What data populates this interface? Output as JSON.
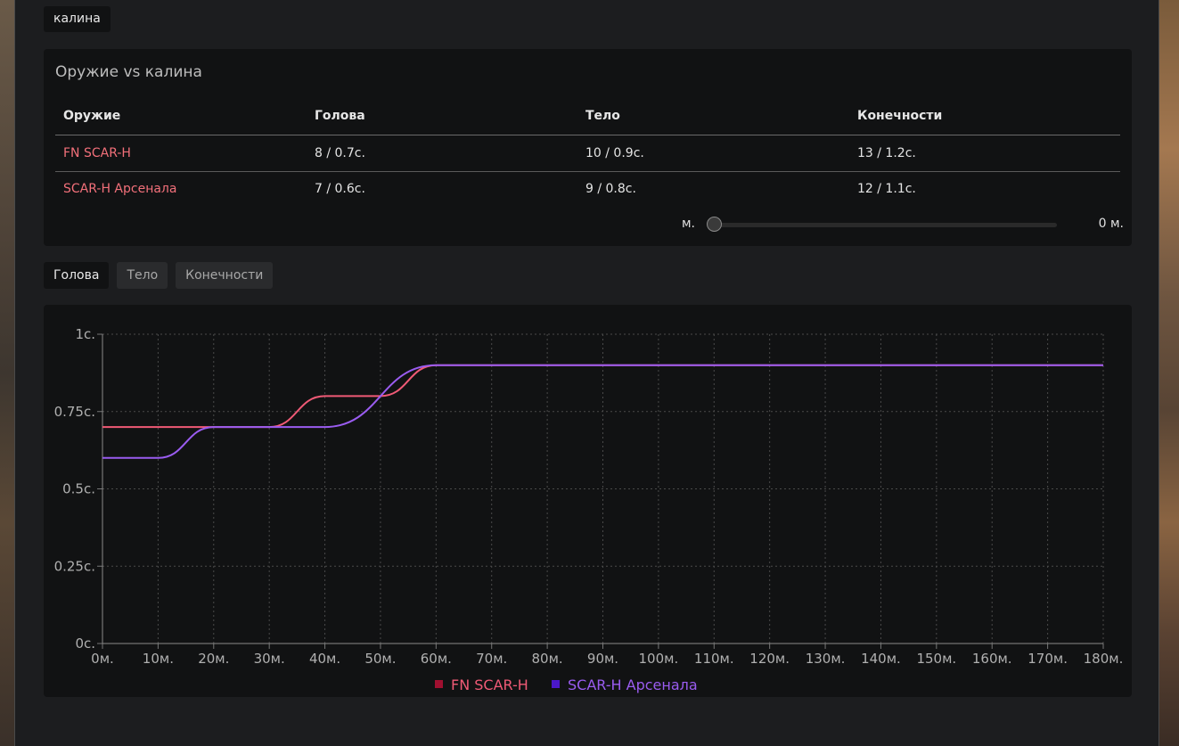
{
  "tag": "калина",
  "card": {
    "title": "Оружие vs калина",
    "columns": [
      "Оружие",
      "Голова",
      "Тело",
      "Конечности"
    ],
    "rows": [
      {
        "weapon": "FN SCAR-H",
        "head": "8 / 0.7с.",
        "body": "10 / 0.9с.",
        "limbs": "13 / 1.2с."
      },
      {
        "weapon": "SCAR-H Арсенала",
        "head": "7 / 0.6с.",
        "body": "9 / 0.8с.",
        "limbs": "12 / 1.1с."
      }
    ],
    "slider": {
      "label": "м.",
      "value_text": "0 м.",
      "value": 0
    }
  },
  "tabs": [
    "Голова",
    "Тело",
    "Конечности"
  ],
  "active_tab": "Голова",
  "colors": {
    "series1": "#f05a76",
    "series2": "#9a5cf0",
    "legend1": "#a01030",
    "legend2": "#4a18c8"
  },
  "chart_data": {
    "type": "line",
    "title": "",
    "xlabel": "",
    "ylabel": "",
    "x_ticks": [
      "0м.",
      "10м.",
      "20м.",
      "30м.",
      "40м.",
      "50м.",
      "60м.",
      "70м.",
      "80м.",
      "90м.",
      "100м.",
      "110м.",
      "120м.",
      "130м.",
      "140м.",
      "150м.",
      "160м.",
      "170м.",
      "180м."
    ],
    "y_ticks": [
      "0с.",
      "0.25с.",
      "0.5с.",
      "0.75с.",
      "1с."
    ],
    "xlim": [
      0,
      180
    ],
    "ylim": [
      0,
      1
    ],
    "grid": true,
    "legend": "bottom-center",
    "series": [
      {
        "name": "FN SCAR-H",
        "points": [
          [
            0,
            0.7
          ],
          [
            30,
            0.7
          ],
          [
            40,
            0.8
          ],
          [
            50,
            0.8
          ],
          [
            60,
            0.9
          ],
          [
            180,
            0.9
          ]
        ]
      },
      {
        "name": "SCAR-H Арсенала",
        "points": [
          [
            0,
            0.6
          ],
          [
            10,
            0.6
          ],
          [
            20,
            0.7
          ],
          [
            40,
            0.7
          ],
          [
            60,
            0.9
          ],
          [
            180,
            0.9
          ]
        ]
      }
    ]
  }
}
